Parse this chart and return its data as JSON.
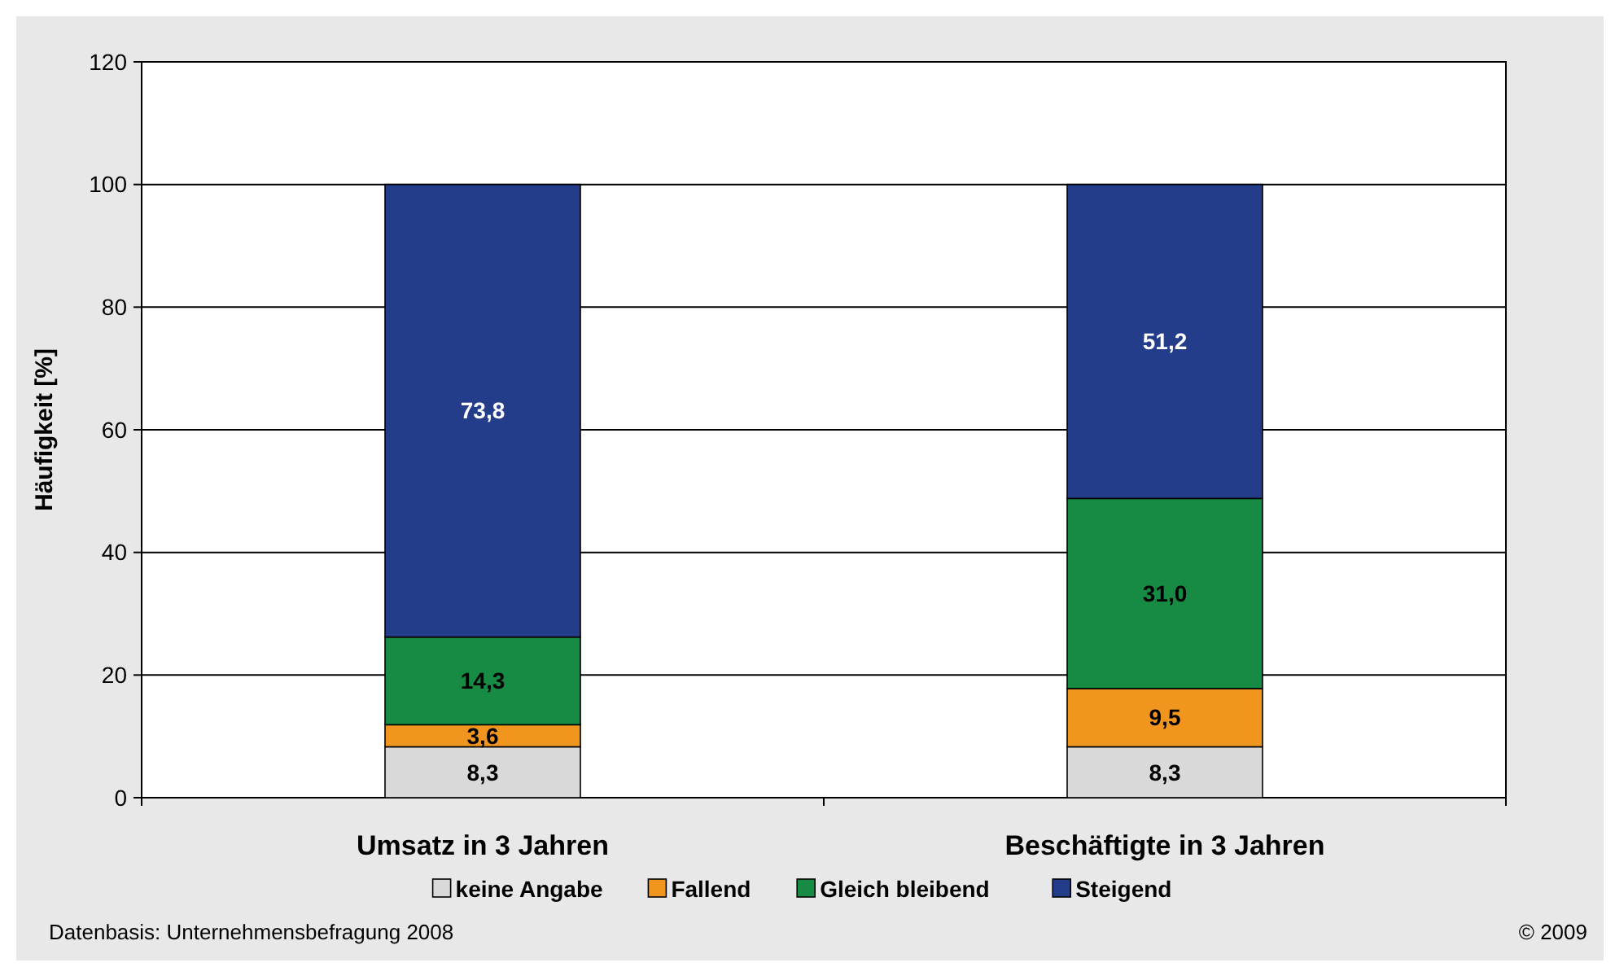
{
  "chart_data": {
    "type": "bar",
    "stacked": true,
    "ylabel": "Häufigkeit [%]",
    "categories": [
      "Umsatz in 3 Jahren",
      "Beschäftigte in 3 Jahren"
    ],
    "series": [
      {
        "name": "keine Angabe",
        "color": "#d9d9d9",
        "values": [
          8.3,
          8.3
        ],
        "value_labels": [
          "8,3",
          "8,3"
        ]
      },
      {
        "name": "Fallend",
        "color": "#f0961e",
        "values": [
          3.6,
          9.5
        ],
        "value_labels": [
          "3,6",
          "9,5"
        ]
      },
      {
        "name": "Gleich bleibend",
        "color": "#178a43",
        "values": [
          14.3,
          31.0
        ],
        "value_labels": [
          "14,3",
          "31,0"
        ]
      },
      {
        "name": "Steigend",
        "color": "#233d8a",
        "values": [
          73.8,
          51.2
        ],
        "value_labels": [
          "73,8",
          "51,2"
        ]
      }
    ],
    "ylim": [
      0,
      120
    ],
    "yticks": [
      0,
      20,
      40,
      60,
      80,
      100,
      120
    ],
    "grid": "y",
    "legend": "bottom",
    "annotations": [
      "Datenbasis: Unternehmensbefragung 2008",
      "© 2009"
    ]
  }
}
